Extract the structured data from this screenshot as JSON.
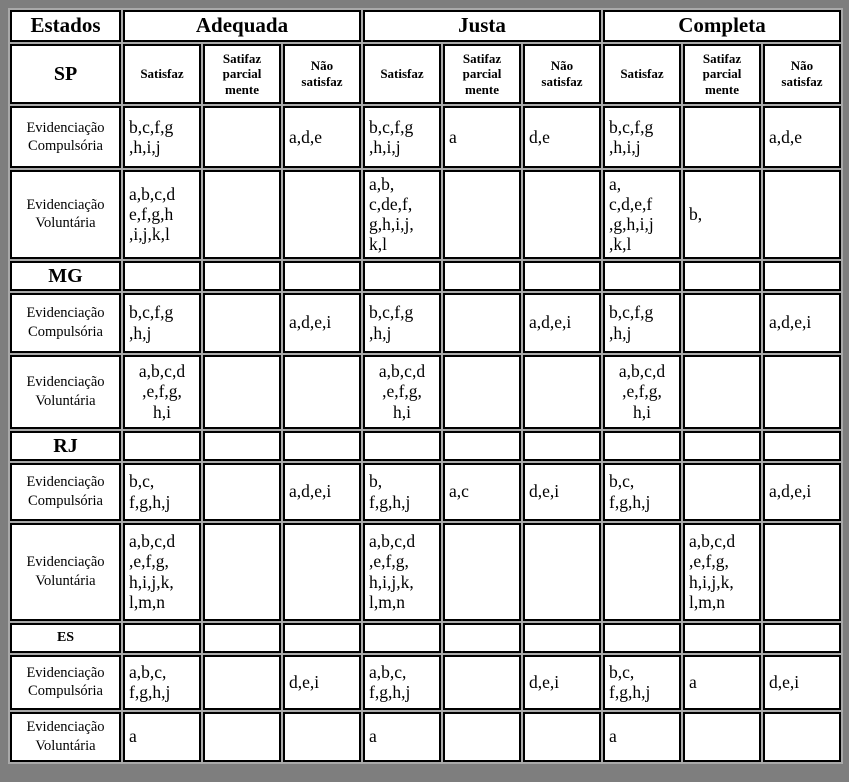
{
  "table": {
    "corner": "Estados",
    "groups": {
      "adequada": "Adequada",
      "justa": "Justa",
      "completa": "Completa"
    },
    "sub": {
      "satisfaz": "Satisfaz",
      "parcial": "Satifaz\nparcial\nmente",
      "nao": "Não\nsatisfaz"
    },
    "states": {
      "sp": "SP",
      "mg": "MG",
      "rj": "RJ",
      "es": "ES"
    },
    "row_labels": {
      "compulsoria": "Evidenciação\nCompulsória",
      "voluntaria": "Evidenciação\nVoluntária"
    },
    "data": {
      "sp_comp": [
        "b,c,f,g\n,h,i,j",
        "",
        "a,d,e",
        "b,c,f,g\n,h,i,j",
        "a",
        "d,e",
        "b,c,f,g\n,h,i,j",
        "",
        "a,d,e"
      ],
      "sp_vol": [
        "a,b,c,d\ne,f,g,h\n,i,j,k,l",
        "",
        "",
        "a,b,\nc,de,f,\ng,h,i,j,\nk,l",
        "",
        "",
        "a,\nc,d,e,f\n,g,h,i,j\n,k,l",
        "b,",
        ""
      ],
      "mg_comp": [
        "b,c,f,g\n,h,j",
        "",
        "a,d,e,i",
        "b,c,f,g\n,h,j",
        "",
        "a,d,e,i",
        "b,c,f,g\n,h,j",
        "",
        "a,d,e,i"
      ],
      "mg_vol": [
        "a,b,c,d\n,e,f,g,\nh,i",
        "",
        "",
        "a,b,c,d\n,e,f,g,\nh,i",
        "",
        "",
        "a,b,c,d\n,e,f,g,\nh,i",
        "",
        ""
      ],
      "rj_comp": [
        "b,c,\nf,g,h,j",
        "",
        "a,d,e,i",
        "b,\nf,g,h,j",
        "a,c",
        "d,e,i",
        "b,c,\nf,g,h,j",
        "",
        "a,d,e,i"
      ],
      "rj_vol": [
        "a,b,c,d\n,e,f,g,\nh,i,j,k,\nl,m,n",
        "",
        "",
        "a,b,c,d\n,e,f,g,\nh,i,j,k,\nl,m,n",
        "",
        "",
        "",
        "a,b,c,d\n,e,f,g,\nh,i,j,k,\nl,m,n",
        ""
      ],
      "es_comp": [
        "a,b,c,\nf,g,h,j",
        "",
        "d,e,i",
        "a,b,c,\nf,g,h,j",
        "",
        "d,e,i",
        "b,c,\nf,g,h,j",
        "a",
        "d,e,i"
      ],
      "es_vol": [
        "a",
        "",
        "",
        "a",
        "",
        "",
        "a",
        "",
        ""
      ]
    }
  }
}
